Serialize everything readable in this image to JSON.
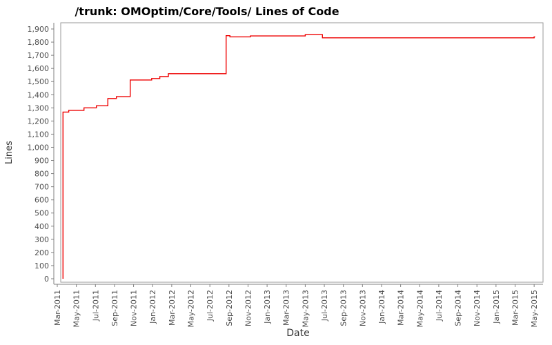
{
  "chart_data": {
    "type": "line",
    "title": "/trunk: OMOptim/Core/Tools/ Lines of Code",
    "xlabel": "Date",
    "ylabel": "Lines",
    "grid": false,
    "legend": "none",
    "line_color": "#ee0000",
    "axis_color": "#808080",
    "frame_color": "#9a9a9a",
    "tick_label_color": "#4d4d4d",
    "background_color": "#ffffff",
    "ylim": [
      0,
      1900
    ],
    "y_axis": {
      "tick_step": 100,
      "ticks": [
        {
          "value": 0,
          "label": "0"
        },
        {
          "value": 100,
          "label": "100"
        },
        {
          "value": 200,
          "label": "200"
        },
        {
          "value": 300,
          "label": "300"
        },
        {
          "value": 400,
          "label": "400"
        },
        {
          "value": 500,
          "label": "500"
        },
        {
          "value": 600,
          "label": "600"
        },
        {
          "value": 700,
          "label": "700"
        },
        {
          "value": 800,
          "label": "800"
        },
        {
          "value": 900,
          "label": "900"
        },
        {
          "value": 1000,
          "label": "1,000"
        },
        {
          "value": 1100,
          "label": "1,100"
        },
        {
          "value": 1200,
          "label": "1,200"
        },
        {
          "value": 1300,
          "label": "1,300"
        },
        {
          "value": 1400,
          "label": "1,400"
        },
        {
          "value": 1500,
          "label": "1,500"
        },
        {
          "value": 1600,
          "label": "1,600"
        },
        {
          "value": 1700,
          "label": "1,700"
        },
        {
          "value": 1800,
          "label": "1,800"
        },
        {
          "value": 1900,
          "label": "1,900"
        }
      ]
    },
    "x_axis": {
      "tick_labels": [
        "Mar-2011",
        "May-2011",
        "Jul-2011",
        "Sep-2011",
        "Nov-2011",
        "Jan-2012",
        "Mar-2012",
        "May-2012",
        "Jul-2012",
        "Sep-2012",
        "Nov-2012",
        "Jan-2013",
        "Mar-2013",
        "May-2013",
        "Jul-2013",
        "Sep-2013",
        "Nov-2013",
        "Jan-2014",
        "Mar-2014",
        "May-2014",
        "Jul-2014",
        "Sep-2014",
        "Nov-2014",
        "Jan-2015",
        "Mar-2015",
        "May-2015"
      ]
    },
    "series": [
      {
        "name": "lines-of-code",
        "step": true,
        "x_unit": "months_since_Mar-2011",
        "points": [
          [
            0.6,
            0
          ],
          [
            0.6,
            1268
          ],
          [
            1.2,
            1281
          ],
          [
            2.8,
            1300
          ],
          [
            4.1,
            1316
          ],
          [
            5.3,
            1371
          ],
          [
            6.2,
            1385
          ],
          [
            7.65,
            1512
          ],
          [
            9.9,
            1523
          ],
          [
            10.75,
            1538
          ],
          [
            11.65,
            1560
          ],
          [
            17.7,
            1849
          ],
          [
            18.1,
            1840
          ],
          [
            20.25,
            1847
          ],
          [
            26.0,
            1857
          ],
          [
            27.8,
            1833
          ],
          [
            49.9,
            1833
          ],
          [
            50.0,
            1840
          ]
        ],
        "end_x": 50.1
      }
    ]
  }
}
